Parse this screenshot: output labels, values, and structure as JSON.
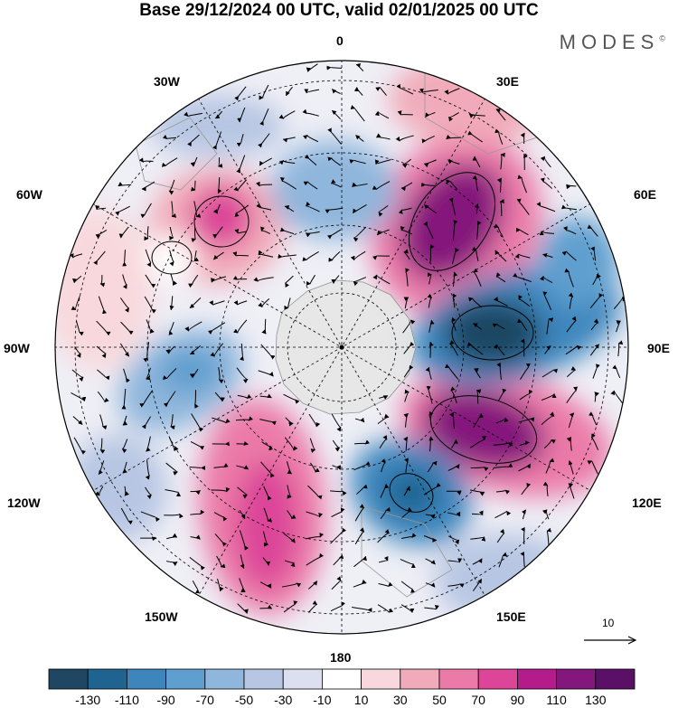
{
  "title": "Base 29/12/2024 00 UTC, valid 02/01/2025 00 UTC",
  "brand": "MODES",
  "brand_mark": "©",
  "longitude_labels": {
    "top": "0",
    "upper_left": "30W",
    "upper_right": "30E",
    "left_upper": "60W",
    "right_upper": "60E",
    "left": "90W",
    "right": "90E",
    "left_lower": "120W",
    "right_lower": "120E",
    "lower_left": "150W",
    "lower_right": "150E",
    "bottom": "180"
  },
  "vector_reference": "10",
  "colorbar": {
    "ticks": [
      "-130",
      "-110",
      "-90",
      "-70",
      "-50",
      "-30",
      "-10",
      "10",
      "30",
      "50",
      "70",
      "90",
      "110",
      "130"
    ],
    "colors": [
      "#1f4763",
      "#1f6491",
      "#3c86bd",
      "#5f9fcf",
      "#8fb6dc",
      "#b7c6e3",
      "#dcdff0",
      "#ffffff",
      "#f8d8dc",
      "#f1aab9",
      "#eb7aa8",
      "#dc4598",
      "#b41c8c",
      "#84177c",
      "#5a1066"
    ]
  }
}
